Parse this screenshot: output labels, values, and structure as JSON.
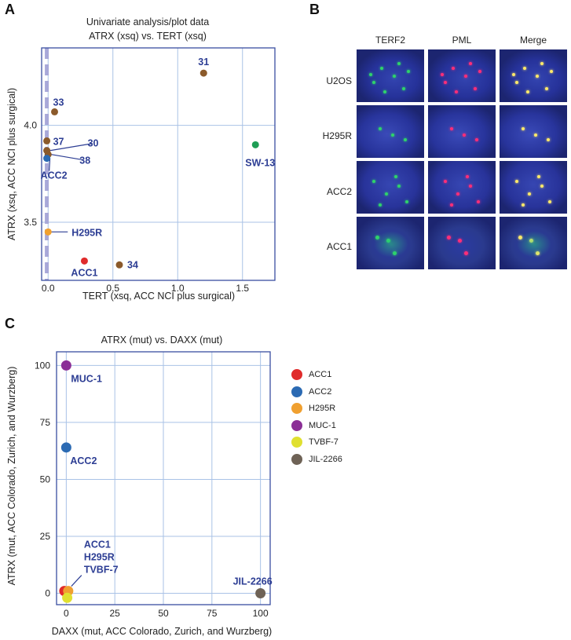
{
  "figure": {
    "panel_a": "A",
    "panel_b": "B",
    "panel_c": "C"
  },
  "colors": {
    "axis": "#3a4ea0",
    "grid": "#a9c2e6",
    "label": "#2d3e94",
    "brown": "#8b5a2b",
    "green": "#1e9e55",
    "blue": "#2b6ab3",
    "orange": "#f0a030",
    "red": "#e02b2b",
    "purple": "#8b2f96",
    "yellow": "#e0e030",
    "gray_brown": "#6e6256",
    "dash": "#a8a8d8",
    "nucleus": "#2b3a9a"
  },
  "chart_data": [
    {
      "type": "scatter",
      "title": "Univariate analysis/plot data",
      "subtitle": "ATRX (xsq) vs. TERT (xsq)",
      "xlabel": "TERT (xsq, ACC NCI plus surgical)",
      "ylabel": "ATRX (xsq, ACC NCI plus surgical)",
      "xlim": [
        -0.05,
        1.75
      ],
      "ylim": [
        3.2,
        4.4
      ],
      "x_ticks": [
        {
          "value": 0.0,
          "label": "0.0"
        },
        {
          "value": 0.5,
          "label": "0.5"
        },
        {
          "value": 1.0,
          "label": "1.0"
        },
        {
          "value": 1.5,
          "label": "1.5"
        }
      ],
      "y_ticks": [
        {
          "value": 3.5,
          "label": "3.5"
        },
        {
          "value": 4.0,
          "label": "4.0"
        }
      ],
      "reference_line_x": -0.01,
      "points": [
        {
          "x": 1.2,
          "y": 4.27,
          "color": "brown",
          "label": "31"
        },
        {
          "x": 0.05,
          "y": 4.07,
          "color": "brown",
          "label": "33"
        },
        {
          "x": -0.01,
          "y": 3.92,
          "color": "brown",
          "label": "37"
        },
        {
          "x": -0.01,
          "y": 3.87,
          "color": "brown",
          "label": "30"
        },
        {
          "x": 0.0,
          "y": 3.85,
          "color": "brown",
          "label": "38"
        },
        {
          "x": -0.01,
          "y": 3.83,
          "color": "blue",
          "label": "ACC2"
        },
        {
          "x": 1.6,
          "y": 3.9,
          "color": "green",
          "label": "SW-13"
        },
        {
          "x": 0.0,
          "y": 3.45,
          "color": "orange",
          "label": "H295R"
        },
        {
          "x": 0.28,
          "y": 3.3,
          "color": "red",
          "label": "ACC1"
        },
        {
          "x": 0.55,
          "y": 3.28,
          "color": "brown",
          "label": "34"
        }
      ]
    },
    {
      "type": "scatter",
      "title": "ATRX (mut) vs. DAXX (mut)",
      "xlabel": "DAXX (mut, ACC Colorado, Zurich, and Wurzberg)",
      "ylabel": "ATRX (mut, ACC Colorado, Zurich, and Wurzberg)",
      "xlim": [
        -5,
        105
      ],
      "ylim": [
        -5,
        106
      ],
      "x_ticks": [
        {
          "value": 0,
          "label": "0"
        },
        {
          "value": 25,
          "label": "25"
        },
        {
          "value": 50,
          "label": "50"
        },
        {
          "value": 75,
          "label": "75"
        },
        {
          "value": 100,
          "label": "100"
        }
      ],
      "y_ticks": [
        {
          "value": 0,
          "label": "0"
        },
        {
          "value": 25,
          "label": "25"
        },
        {
          "value": 50,
          "label": "50"
        },
        {
          "value": 75,
          "label": "75"
        },
        {
          "value": 100,
          "label": "100"
        }
      ],
      "points": [
        {
          "x": 0,
          "y": 100,
          "color": "purple",
          "name": "MUC-1"
        },
        {
          "x": 0,
          "y": 64,
          "color": "blue",
          "name": "ACC2"
        },
        {
          "x": -1,
          "y": 1,
          "color": "red",
          "name": "ACC1"
        },
        {
          "x": 1,
          "y": 1,
          "color": "orange",
          "name": "H295R"
        },
        {
          "x": 0.5,
          "y": -2,
          "color": "yellow",
          "name": "TVBF-7"
        },
        {
          "x": 100,
          "y": 0,
          "color": "gray_brown",
          "name": "JIL-2266"
        }
      ],
      "annotations": [
        "MUC-1",
        "ACC2",
        "ACC1",
        "H295R",
        "TVBF-7",
        "JIL-2266"
      ],
      "legend": [
        {
          "label": "ACC1",
          "color": "red"
        },
        {
          "label": "ACC2",
          "color": "blue"
        },
        {
          "label": "H295R",
          "color": "orange"
        },
        {
          "label": "MUC-1",
          "color": "purple"
        },
        {
          "label": "TVBF-7",
          "color": "yellow"
        },
        {
          "label": "JIL-2266",
          "color": "gray_brown"
        }
      ]
    }
  ],
  "micrographs": {
    "columns": [
      "TERF2",
      "PML",
      "Merge"
    ],
    "rows": [
      "U2OS",
      "H295R",
      "ACC2",
      "ACC1"
    ]
  }
}
